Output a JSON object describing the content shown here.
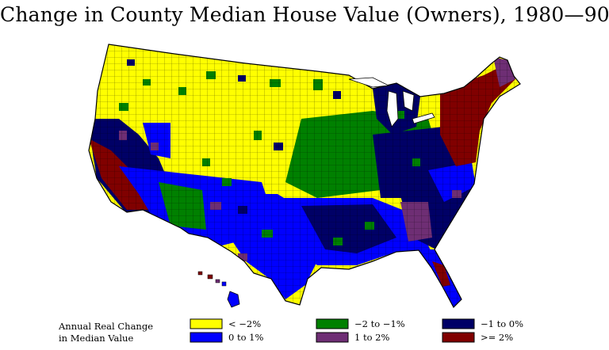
{
  "title": "Change in County Median House Value (Owners), 1980—90",
  "legend": {
    "title_line1": "Annual Real Change",
    "title_line2": "in Median Value",
    "items": [
      {
        "label": "<  −2%",
        "color": "#ffff00"
      },
      {
        "label": "0  to  1%",
        "color": "#0000ff"
      },
      {
        "label": "−2  to  −1%",
        "color": "#008000"
      },
      {
        "label": "1  to  2%",
        "color": "#6e2e74"
      },
      {
        "label": "−1  to  0%",
        "color": "#000066"
      },
      {
        "label": ">=   2%",
        "color": "#800000"
      }
    ]
  },
  "colors": {
    "lt_neg2": "#ffff00",
    "neg2_neg1": "#008000",
    "neg1_0": "#000066",
    "0_1": "#0000ff",
    "1_2": "#6e2e74",
    "ge_2": "#800000"
  }
}
